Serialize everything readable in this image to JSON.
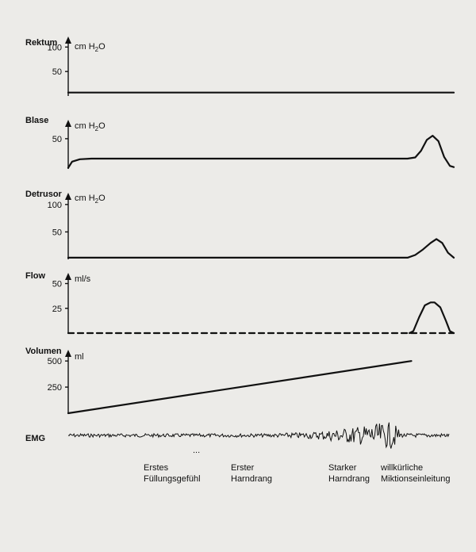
{
  "chart_data": [
    {
      "type": "line",
      "title": "Rektum",
      "ylabel_unit": "cm H",
      "ylabel_sub": "2",
      "ylabel_tail": "O",
      "yticks": [
        50,
        100
      ],
      "ylim": [
        0,
        120
      ],
      "series": [
        {
          "x": [
            0,
            100
          ],
          "values": [
            7,
            7
          ]
        }
      ]
    },
    {
      "type": "line",
      "title": "Blase",
      "ylabel_unit": "cm H",
      "ylabel_sub": "2",
      "ylabel_tail": "O",
      "yticks": [
        50
      ],
      "ylim": [
        0,
        80
      ],
      "series": [
        {
          "x": [
            0,
            1,
            3,
            6,
            10,
            50,
            88,
            90,
            91.5,
            93,
            94.5,
            96,
            97.5,
            99,
            100
          ],
          "values": [
            2,
            12,
            16,
            17,
            17,
            17,
            17,
            19,
            30,
            48,
            55,
            46,
            20,
            5,
            3
          ]
        }
      ]
    },
    {
      "type": "line",
      "title": "Detrusor",
      "ylabel_unit": "cm H",
      "ylabel_sub": "2",
      "ylabel_tail": "O",
      "yticks": [
        50,
        100
      ],
      "ylim": [
        0,
        120
      ],
      "series": [
        {
          "x": [
            0,
            88,
            90,
            92,
            94,
            95.5,
            97,
            98.5,
            100
          ],
          "values": [
            3,
            3,
            8,
            18,
            30,
            37,
            30,
            12,
            3
          ]
        }
      ]
    },
    {
      "type": "line",
      "title": "Flow",
      "ylabel_unit": "ml/s",
      "yticks": [
        25,
        50
      ],
      "ylim": [
        0,
        60
      ],
      "series": [
        {
          "x": [
            0,
            100
          ],
          "values": [
            0,
            0
          ],
          "dashed": true
        },
        {
          "x": [
            88.5,
            89.5,
            91,
            92.5,
            94,
            95,
            96.5,
            98,
            99,
            100
          ],
          "values": [
            0,
            2,
            16,
            28,
            31,
            31,
            26,
            12,
            2,
            0
          ]
        }
      ]
    },
    {
      "type": "line",
      "title": "Volumen",
      "ylabel_unit": "ml",
      "yticks": [
        250,
        500
      ],
      "ylim": [
        0,
        600
      ],
      "series": [
        {
          "x": [
            0,
            89
          ],
          "values": [
            0,
            500
          ]
        }
      ]
    },
    {
      "type": "line",
      "title": "EMG"
    }
  ],
  "annotations": [
    {
      "line1": "Erstes",
      "line2": "Füllungsgefühl"
    },
    {
      "line1": "Erster",
      "line2": "Harndrang"
    },
    {
      "line1": "Starker",
      "line2": "Harndrang"
    },
    {
      "line1": "willkürliche",
      "line2": "Miktionseinleitung"
    }
  ],
  "ellipsis": "..."
}
